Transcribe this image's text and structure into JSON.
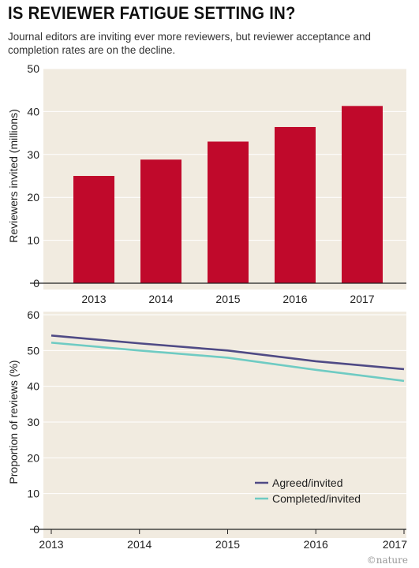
{
  "title": "IS REVIEWER FATIGUE SETTING IN?",
  "subtitle": "Journal editors are inviting ever more reviewers, but reviewer acceptance and completion rates are on the decline.",
  "credit": "©nature",
  "colors": {
    "panel_bg": "#f1ebe0",
    "bar": "#c0092b",
    "agreed": "#4f4a85",
    "completed": "#6fcbc3"
  },
  "chart_data": [
    {
      "type": "bar",
      "categories": [
        "2013",
        "2014",
        "2015",
        "2016",
        "2017"
      ],
      "values": [
        25,
        28.8,
        33,
        36.4,
        41.3
      ],
      "xlabel": "",
      "ylabel": "Reviewers invited (millions)",
      "ylim": [
        0,
        50
      ],
      "yticks": [
        0,
        10,
        20,
        30,
        40,
        50
      ],
      "grid": true
    },
    {
      "type": "line",
      "x": [
        "2013",
        "2014",
        "2015",
        "2016",
        "2017"
      ],
      "series": [
        {
          "name": "Agreed/invited",
          "values": [
            54.2,
            52,
            50,
            47,
            44.8
          ]
        },
        {
          "name": "Completed/invited",
          "values": [
            52.2,
            50,
            48,
            44.6,
            41.5
          ]
        }
      ],
      "xlabel": "",
      "ylabel": "Proportion of reviews (%)",
      "ylim": [
        0,
        60
      ],
      "yticks": [
        0,
        10,
        20,
        30,
        40,
        50,
        60
      ],
      "grid": true,
      "legend": "bottom-right"
    }
  ]
}
